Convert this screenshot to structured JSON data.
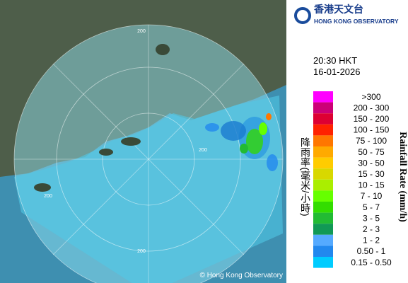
{
  "logo": {
    "chinese": "香港天文台",
    "english": "HONG KONG OBSERVATORY"
  },
  "time": "20:30 HKT",
  "date": "16-01-2026",
  "legend": {
    "title_en": "Rainfall Rate (mm/h)",
    "title_zh": "降雨率(毫米/小時)",
    "items": [
      {
        "label": ">300",
        "color": "#ff00ff"
      },
      {
        "label": "200 - 300",
        "color": "#cc0077"
      },
      {
        "label": "150 - 200",
        "color": "#dd0033"
      },
      {
        "label": "100 - 150",
        "color": "#ff2200"
      },
      {
        "label": "75 - 100",
        "color": "#ff7700"
      },
      {
        "label": "50 - 75",
        "color": "#ffaa00"
      },
      {
        "label": "30 - 50",
        "color": "#ffcc00"
      },
      {
        "label": "15 - 30",
        "color": "#d8d800"
      },
      {
        "label": "10 - 15",
        "color": "#aaee00"
      },
      {
        "label": "7 - 10",
        "color": "#66ff00"
      },
      {
        "label": "5 - 7",
        "color": "#33dd00"
      },
      {
        "label": "3 - 5",
        "color": "#22bb33"
      },
      {
        "label": "2 - 3",
        "color": "#119955"
      },
      {
        "label": "1 - 2",
        "color": "#55aaff"
      },
      {
        "label": "0.50 - 1",
        "color": "#2288ee"
      },
      {
        "label": "0.15 - 0.50",
        "color": "#00ccff"
      }
    ]
  },
  "map": {
    "ring_labels": [
      "200",
      "200",
      "200",
      "200"
    ],
    "copyright": "© Hong Kong Observatory"
  }
}
